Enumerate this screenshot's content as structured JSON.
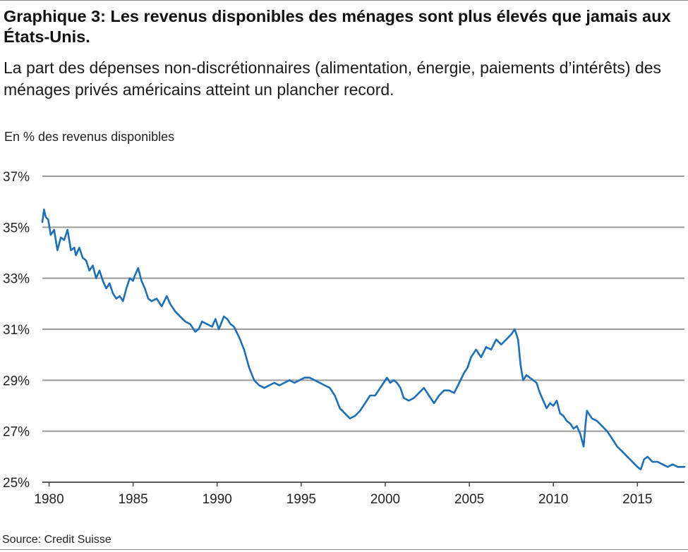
{
  "title": "Graphique 3: Les revenus disponibles des ménages sont plus élevés que jamais aux États-Unis.",
  "subtitle": "La part des dépenses non-discrétionnaires (alimentation, énergie, paiements d’intérêts) des ménages privés américains atteint un plancher record.",
  "source": "Source: Credit Suisse",
  "colors": {
    "line": "#1f6fb5",
    "grid": "#9a9a9a",
    "axis": "#444444"
  },
  "chart_data": {
    "type": "line",
    "ylabel": "En % des revenus disponibles",
    "xlabel": "",
    "title": "",
    "xlim": [
      1979.6,
      2017.8
    ],
    "ylim": [
      25,
      37
    ],
    "y_ticks": [
      25,
      27,
      29,
      31,
      33,
      35,
      37
    ],
    "y_tick_labels": [
      "25%",
      "27%",
      "29%",
      "31%",
      "33%",
      "35%",
      "37%"
    ],
    "x_ticks": [
      1980,
      1985,
      1990,
      1995,
      2000,
      2005,
      2010,
      2015
    ],
    "x_tick_labels": [
      "1980",
      "1985",
      "1990",
      "1995",
      "2000",
      "2005",
      "2010",
      "2015"
    ],
    "grid": "horizontal",
    "legend": "none",
    "series": [
      {
        "x": [
          1979.6,
          1979.7,
          1979.8,
          1979.95,
          1980.1,
          1980.3,
          1980.5,
          1980.7,
          1980.9,
          1981.1,
          1981.3,
          1981.5,
          1981.6,
          1981.8,
          1982.0,
          1982.2,
          1982.4,
          1982.6,
          1982.8,
          1983.0,
          1983.2,
          1983.4,
          1983.6,
          1983.8,
          1984.0,
          1984.2,
          1984.4,
          1984.6,
          1984.8,
          1985.0,
          1985.1,
          1985.3,
          1985.5,
          1985.7,
          1985.9,
          1986.1,
          1986.4,
          1986.7,
          1987.0,
          1987.2,
          1987.5,
          1987.8,
          1988.1,
          1988.4,
          1988.7,
          1988.9,
          1989.1,
          1989.4,
          1989.7,
          1989.9,
          1990.1,
          1990.4,
          1990.6,
          1990.8,
          1991.0,
          1991.3,
          1991.6,
          1991.9,
          1992.2,
          1992.5,
          1992.8,
          1993.1,
          1993.4,
          1993.7,
          1994.0,
          1994.3,
          1994.6,
          1994.9,
          1995.2,
          1995.5,
          1995.8,
          1996.1,
          1996.4,
          1996.7,
          1997.0,
          1997.3,
          1997.6,
          1997.9,
          1998.2,
          1998.5,
          1998.8,
          1999.1,
          1999.4,
          1999.7,
          1999.9,
          2000.1,
          2000.3,
          2000.5,
          2000.7,
          2000.9,
          2001.1,
          2001.4,
          2001.7,
          2002.0,
          2002.3,
          2002.6,
          2002.9,
          2003.2,
          2003.5,
          2003.8,
          2004.1,
          2004.4,
          2004.7,
          2004.9,
          2005.1,
          2005.4,
          2005.7,
          2006.0,
          2006.3,
          2006.6,
          2006.9,
          2007.2,
          2007.5,
          2007.7,
          2007.9,
          2008.05,
          2008.2,
          2008.4,
          2008.6,
          2008.8,
          2009.0,
          2009.2,
          2009.4,
          2009.6,
          2009.8,
          2010.0,
          2010.2,
          2010.4,
          2010.6,
          2010.8,
          2011.0,
          2011.2,
          2011.4,
          2011.6,
          2011.8,
          2011.9,
          2012.0,
          2012.1,
          2012.3,
          2012.6,
          2012.9,
          2013.2,
          2013.5,
          2013.8,
          2014.1,
          2014.4,
          2014.7,
          2015.0,
          2015.2,
          2015.4,
          2015.6,
          2015.9,
          2016.2,
          2016.5,
          2016.8,
          2017.1,
          2017.4,
          2017.6,
          2017.8
        ],
        "values": [
          35.2,
          35.7,
          35.4,
          35.3,
          34.7,
          34.9,
          34.1,
          34.6,
          34.5,
          34.9,
          34.1,
          34.2,
          33.9,
          34.2,
          33.8,
          33.7,
          33.3,
          33.5,
          33.0,
          33.3,
          32.9,
          32.6,
          32.8,
          32.4,
          32.2,
          32.3,
          32.1,
          32.6,
          33.0,
          32.9,
          33.1,
          33.4,
          32.9,
          32.6,
          32.2,
          32.1,
          32.2,
          31.9,
          32.3,
          32.0,
          31.7,
          31.5,
          31.3,
          31.2,
          30.9,
          31.0,
          31.3,
          31.2,
          31.1,
          31.4,
          31.0,
          31.5,
          31.4,
          31.2,
          31.1,
          30.7,
          30.2,
          29.5,
          29.0,
          28.8,
          28.7,
          28.8,
          28.9,
          28.8,
          28.9,
          29.0,
          28.9,
          29.0,
          29.1,
          29.1,
          29.0,
          28.9,
          28.8,
          28.7,
          28.4,
          27.9,
          27.7,
          27.5,
          27.6,
          27.8,
          28.1,
          28.4,
          28.4,
          28.7,
          28.9,
          29.1,
          28.9,
          29.0,
          28.9,
          28.7,
          28.3,
          28.2,
          28.3,
          28.5,
          28.7,
          28.4,
          28.1,
          28.4,
          28.6,
          28.6,
          28.5,
          28.9,
          29.3,
          29.5,
          29.9,
          30.2,
          29.9,
          30.3,
          30.2,
          30.6,
          30.4,
          30.6,
          30.8,
          31.0,
          30.6,
          29.6,
          29.0,
          29.2,
          29.1,
          29.0,
          28.9,
          28.5,
          28.2,
          27.9,
          28.1,
          28.0,
          28.2,
          27.7,
          27.6,
          27.4,
          27.3,
          27.1,
          27.2,
          26.9,
          26.4,
          27.2,
          27.8,
          27.7,
          27.5,
          27.4,
          27.2,
          27.0,
          26.7,
          26.4,
          26.2,
          26.0,
          25.8,
          25.6,
          25.5,
          25.9,
          26.0,
          25.8,
          25.8,
          25.7,
          25.6,
          25.7,
          25.6,
          25.6,
          25.6
        ]
      }
    ]
  }
}
